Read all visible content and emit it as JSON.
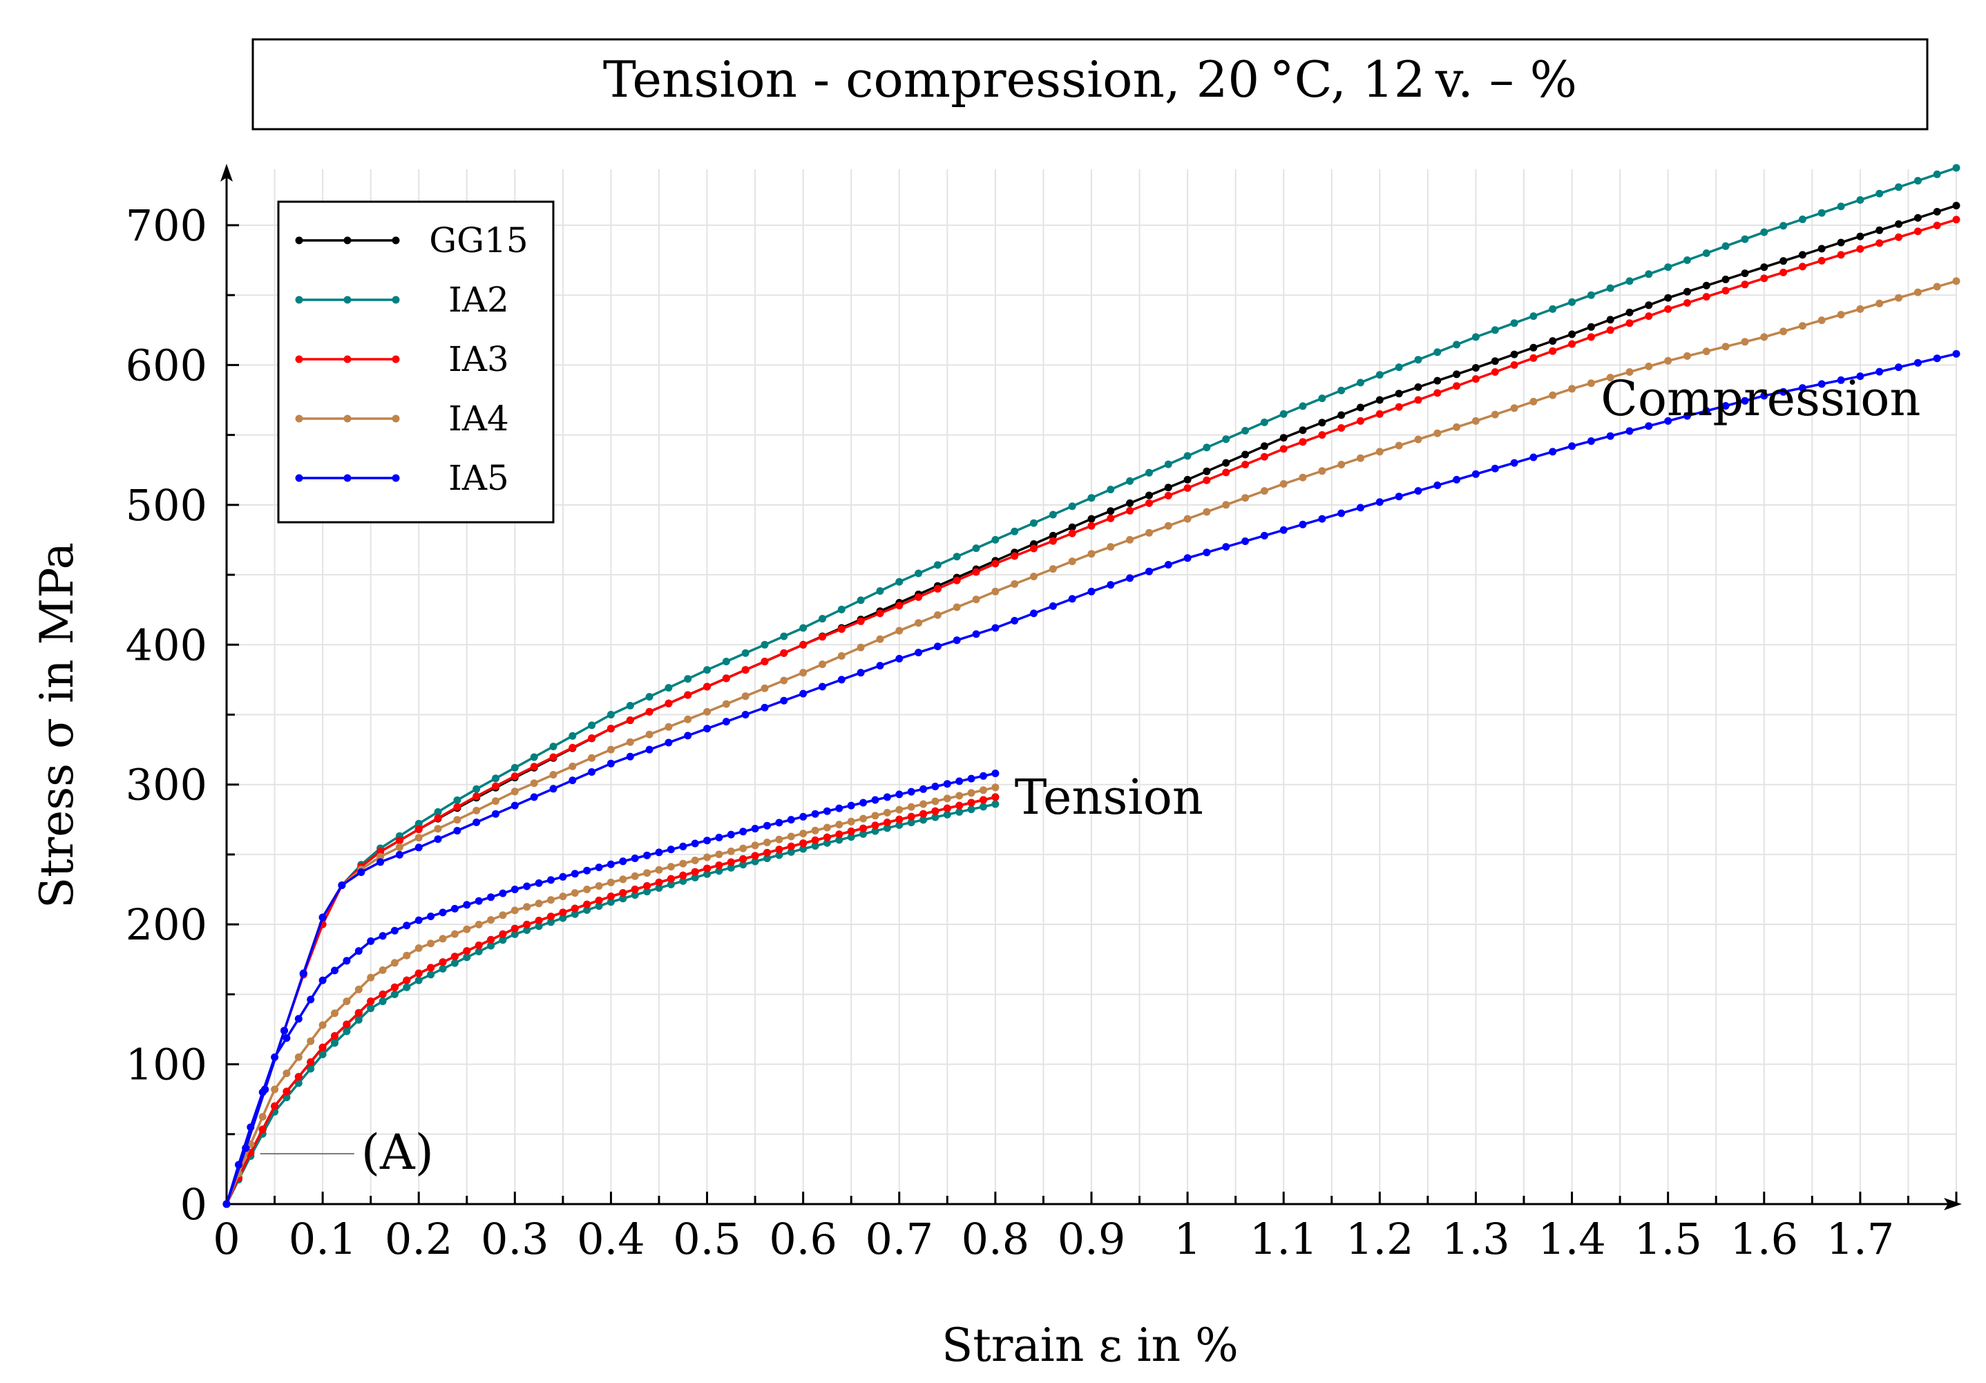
{
  "chart_data": {
    "type": "line",
    "title": "Tension - compression, 20 °C, 12 v. – %",
    "xlabel": "Strain ε in %",
    "ylabel": "Stress σ in MPa",
    "xlim": [
      0,
      1.8
    ],
    "ylim": [
      0,
      740
    ],
    "x_ticks": [
      0,
      0.1,
      0.2,
      0.3,
      0.4,
      0.5,
      0.6,
      0.7,
      0.8,
      0.9,
      1,
      1.1,
      1.2,
      1.3,
      1.4,
      1.5,
      1.6,
      1.7
    ],
    "x_tick_labels": [
      "0",
      "0.1",
      "0.2",
      "0.3",
      "0.4",
      "0.5",
      "0.6",
      "0.7",
      "0.8",
      "0.9",
      "1",
      "1.1",
      "1.2",
      "1.3",
      "1.4",
      "1.5",
      "1.6",
      "1.7"
    ],
    "y_ticks": [
      0,
      100,
      200,
      300,
      400,
      500,
      600,
      700
    ],
    "y_tick_labels": [
      "0",
      "100",
      "200",
      "300",
      "400",
      "500",
      "600",
      "700"
    ],
    "grid": true,
    "legend_position": "top-left",
    "annotations": [
      {
        "text": "Tension",
        "x": 0.82,
        "y": 290
      },
      {
        "text": "Compression",
        "x": 1.43,
        "y": 575
      },
      {
        "text": "(A)",
        "x": 0.14,
        "y": 36,
        "leader_from": [
          0.035,
          36
        ]
      }
    ],
    "series": [
      {
        "name": "GG15",
        "color": "#000000",
        "compression": {
          "x": [
            0,
            0.02,
            0.04,
            0.06,
            0.08,
            0.1,
            0.12,
            0.15,
            0.2,
            0.25,
            0.3,
            0.4,
            0.5,
            0.6,
            0.7,
            0.8,
            0.9,
            1.0,
            1.1,
            1.2,
            1.3,
            1.4,
            1.5,
            1.6,
            1.7,
            1.8
          ],
          "y": [
            0,
            40,
            82,
            124,
            165,
            205,
            228,
            248,
            268,
            287,
            305,
            340,
            370,
            400,
            430,
            460,
            490,
            518,
            548,
            575,
            598,
            622,
            648,
            670,
            692,
            714
          ]
        },
        "tension": {
          "x": [
            0,
            0.02,
            0.05,
            0.1,
            0.15,
            0.2,
            0.3,
            0.4,
            0.5,
            0.6,
            0.7,
            0.8
          ],
          "y": [
            0,
            30,
            70,
            112,
            145,
            165,
            197,
            220,
            240,
            258,
            275,
            291
          ]
        }
      },
      {
        "name": "IA2",
        "color": "#008080",
        "compression": {
          "x": [
            0,
            0.02,
            0.04,
            0.06,
            0.08,
            0.1,
            0.12,
            0.15,
            0.2,
            0.25,
            0.3,
            0.4,
            0.5,
            0.6,
            0.7,
            0.8,
            0.9,
            1.0,
            1.1,
            1.2,
            1.3,
            1.4,
            1.5,
            1.6,
            1.7,
            1.8
          ],
          "y": [
            0,
            40,
            82,
            124,
            165,
            205,
            228,
            250,
            272,
            293,
            312,
            350,
            382,
            412,
            445,
            475,
            505,
            535,
            565,
            593,
            620,
            645,
            670,
            695,
            718,
            741
          ]
        },
        "tension": {
          "x": [
            0,
            0.02,
            0.05,
            0.1,
            0.15,
            0.2,
            0.3,
            0.4,
            0.5,
            0.6,
            0.7,
            0.8
          ],
          "y": [
            0,
            28,
            66,
            107,
            140,
            160,
            193,
            216,
            236,
            254,
            271,
            286
          ]
        }
      },
      {
        "name": "IA3",
        "color": "#ff0000",
        "compression": {
          "x": [
            0,
            0.02,
            0.04,
            0.06,
            0.08,
            0.1,
            0.12,
            0.15,
            0.2,
            0.25,
            0.3,
            0.4,
            0.5,
            0.6,
            0.7,
            0.8,
            0.9,
            1.0,
            1.1,
            1.2,
            1.3,
            1.4,
            1.5,
            1.6,
            1.7,
            1.8
          ],
          "y": [
            0,
            40,
            82,
            124,
            164,
            200,
            228,
            248,
            268,
            288,
            306,
            340,
            370,
            400,
            428,
            458,
            485,
            512,
            540,
            565,
            590,
            615,
            640,
            662,
            683,
            704
          ]
        },
        "tension": {
          "x": [
            0,
            0.02,
            0.05,
            0.1,
            0.15,
            0.2,
            0.3,
            0.4,
            0.5,
            0.6,
            0.7,
            0.8
          ],
          "y": [
            0,
            30,
            70,
            112,
            145,
            165,
            197,
            220,
            240,
            258,
            275,
            291
          ]
        }
      },
      {
        "name": "IA4",
        "color": "#c0844a",
        "compression": {
          "x": [
            0,
            0.02,
            0.04,
            0.06,
            0.08,
            0.1,
            0.12,
            0.15,
            0.2,
            0.25,
            0.3,
            0.4,
            0.5,
            0.6,
            0.7,
            0.8,
            0.9,
            1.0,
            1.1,
            1.2,
            1.3,
            1.4,
            1.5,
            1.6,
            1.7,
            1.8
          ],
          "y": [
            0,
            40,
            82,
            124,
            165,
            205,
            228,
            245,
            262,
            278,
            295,
            325,
            352,
            380,
            410,
            438,
            465,
            490,
            515,
            538,
            560,
            583,
            603,
            620,
            640,
            660
          ]
        },
        "tension": {
          "x": [
            0,
            0.02,
            0.05,
            0.1,
            0.15,
            0.2,
            0.3,
            0.4,
            0.5,
            0.6,
            0.7,
            0.8
          ],
          "y": [
            0,
            35,
            82,
            128,
            162,
            183,
            210,
            230,
            248,
            265,
            282,
            298
          ]
        }
      },
      {
        "name": "IA5",
        "color": "#0000ff",
        "compression": {
          "x": [
            0,
            0.02,
            0.04,
            0.06,
            0.08,
            0.1,
            0.12,
            0.15,
            0.2,
            0.25,
            0.3,
            0.4,
            0.5,
            0.6,
            0.7,
            0.8,
            0.9,
            1.0,
            1.1,
            1.2,
            1.3,
            1.4,
            1.5,
            1.6,
            1.7,
            1.8
          ],
          "y": [
            0,
            40,
            82,
            124,
            165,
            205,
            228,
            242,
            255,
            270,
            285,
            315,
            340,
            365,
            390,
            412,
            438,
            462,
            482,
            502,
            522,
            542,
            560,
            578,
            592,
            608
          ]
        },
        "tension": {
          "x": [
            0,
            0.02,
            0.05,
            0.1,
            0.15,
            0.2,
            0.3,
            0.4,
            0.5,
            0.6,
            0.7,
            0.8
          ],
          "y": [
            0,
            45,
            105,
            160,
            188,
            203,
            225,
            243,
            260,
            277,
            293,
            308
          ]
        }
      }
    ]
  }
}
